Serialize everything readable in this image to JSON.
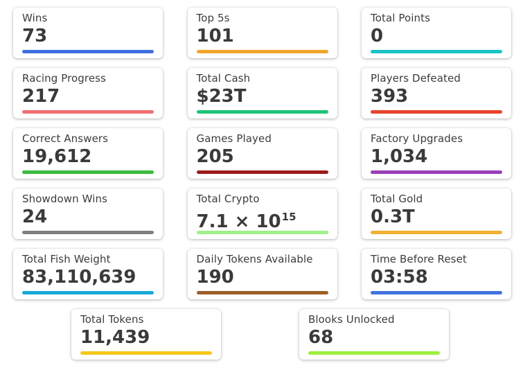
{
  "stats": [
    {
      "label": "Wins",
      "value": "73",
      "color": "#3f6fe0"
    },
    {
      "label": "Top 5s",
      "value": "101",
      "color": "#f2a42b"
    },
    {
      "label": "Total Points",
      "value": "0",
      "color": "#1bc4c4"
    },
    {
      "label": "Racing Progress",
      "value": "217",
      "color": "#f07070"
    },
    {
      "label": "Total Cash",
      "value": "$23T",
      "color": "#1ec37a"
    },
    {
      "label": "Players Defeated",
      "value": "393",
      "color": "#e8432c"
    },
    {
      "label": "Correct Answers",
      "value": "19,612",
      "color": "#3cba3c"
    },
    {
      "label": "Games Played",
      "value": "205",
      "color": "#9c1b1b"
    },
    {
      "label": "Factory Upgrades",
      "value": "1,034",
      "color": "#9b3fb8"
    },
    {
      "label": "Showdown Wins",
      "value": "24",
      "color": "#808080"
    },
    {
      "label": "Total Crypto",
      "value": "7.1 × 10",
      "exponent": "15",
      "color": "#9ff08a"
    },
    {
      "label": "Total Gold",
      "value": "0.3T",
      "color": "#f0b030"
    },
    {
      "label": "Total Fish Weight",
      "value": "83,110,639",
      "color": "#1aaad8"
    },
    {
      "label": "Daily Tokens Available",
      "value": "190",
      "color": "#9c5f2a"
    },
    {
      "label": "Time Before Reset",
      "value": "03:58",
      "color": "#4372e0"
    },
    {
      "label": "Total Tokens",
      "value": "11,439",
      "color": "#f5c71a"
    },
    {
      "label": "Blooks Unlocked",
      "value": "68",
      "color": "#9cf03c"
    }
  ]
}
